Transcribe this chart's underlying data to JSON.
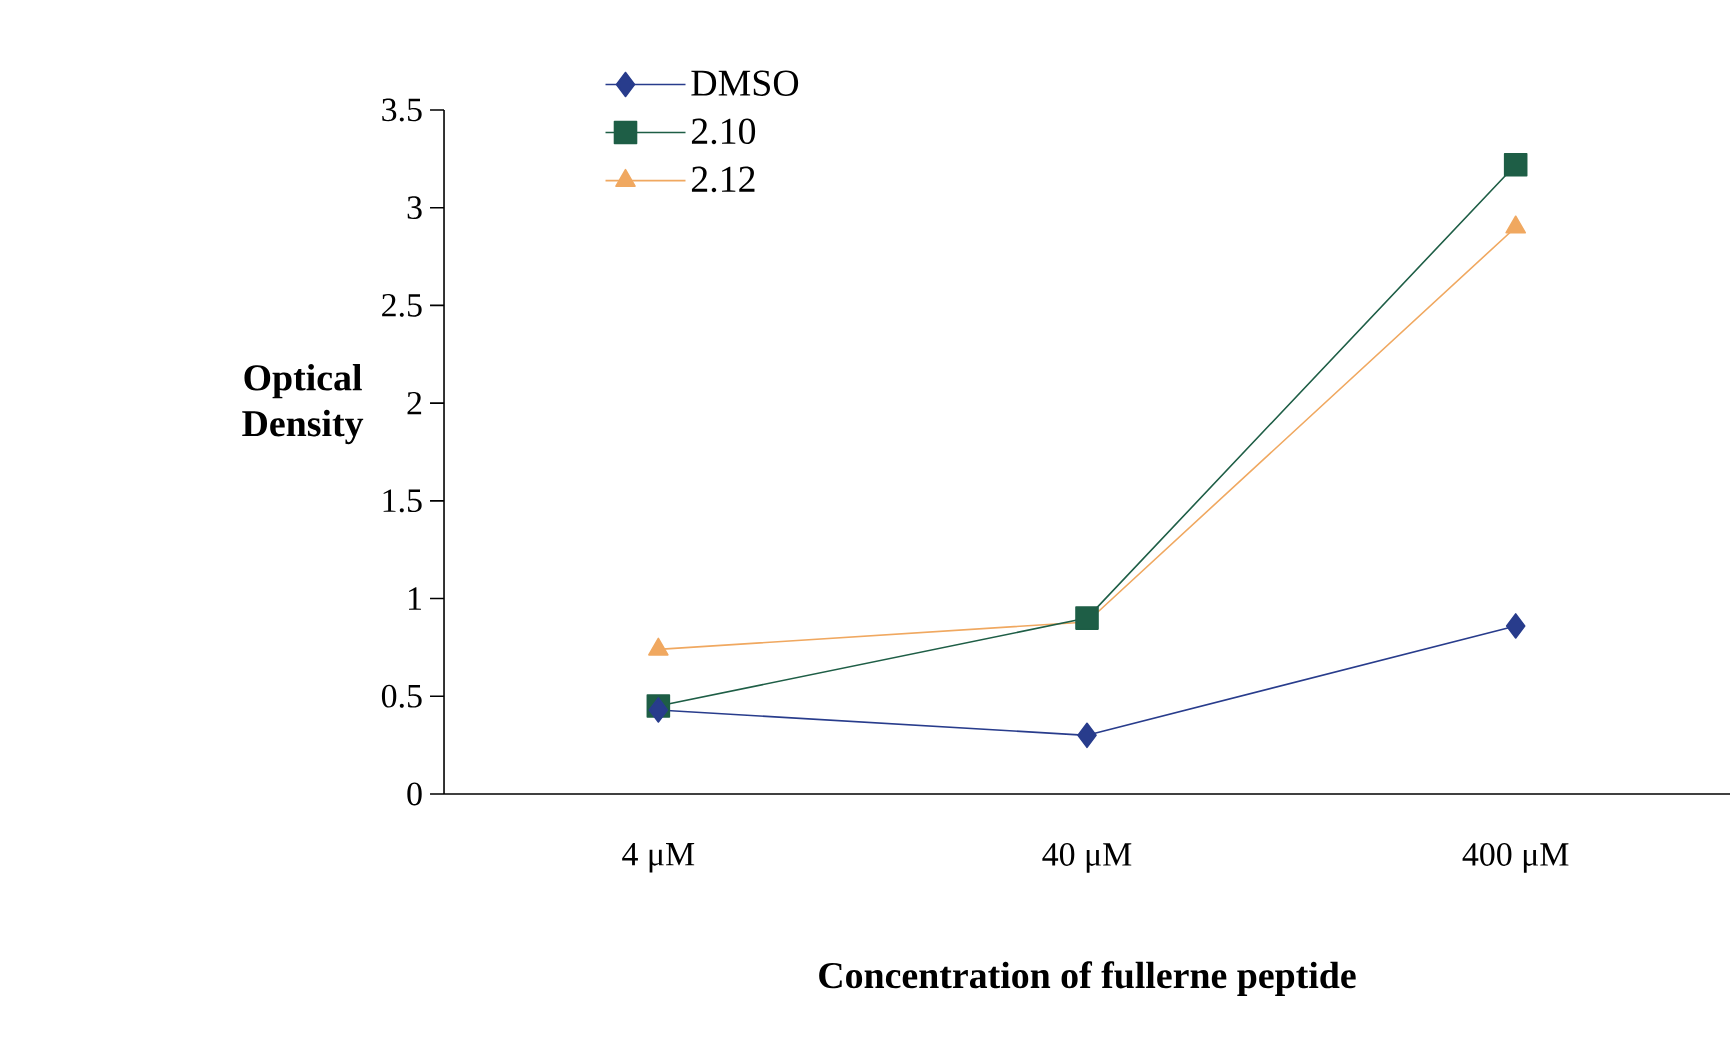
{
  "chart_data": {
    "type": "line",
    "xlabel": "Concentration of fullerne peptide",
    "ylabel": "Optical Density",
    "categories": [
      "4 μM",
      "40 μM",
      "400 μM"
    ],
    "series": [
      {
        "name": "DMSO",
        "color": "#283c8c",
        "marker": "diamond",
        "values": [
          0.43,
          0.3,
          0.86
        ]
      },
      {
        "name": "2.10",
        "color": "#1e5e46",
        "marker": "square",
        "values": [
          0.45,
          0.9,
          3.22
        ]
      },
      {
        "name": "2.12",
        "color": "#f0a860",
        "marker": "triangle",
        "values": [
          0.74,
          0.88,
          2.9
        ]
      }
    ],
    "ylim": [
      0,
      3.5
    ],
    "yticks": [
      0,
      0.5,
      1,
      1.5,
      2,
      2.5,
      3,
      3.5
    ],
    "legend": "top left",
    "grid": false
  }
}
